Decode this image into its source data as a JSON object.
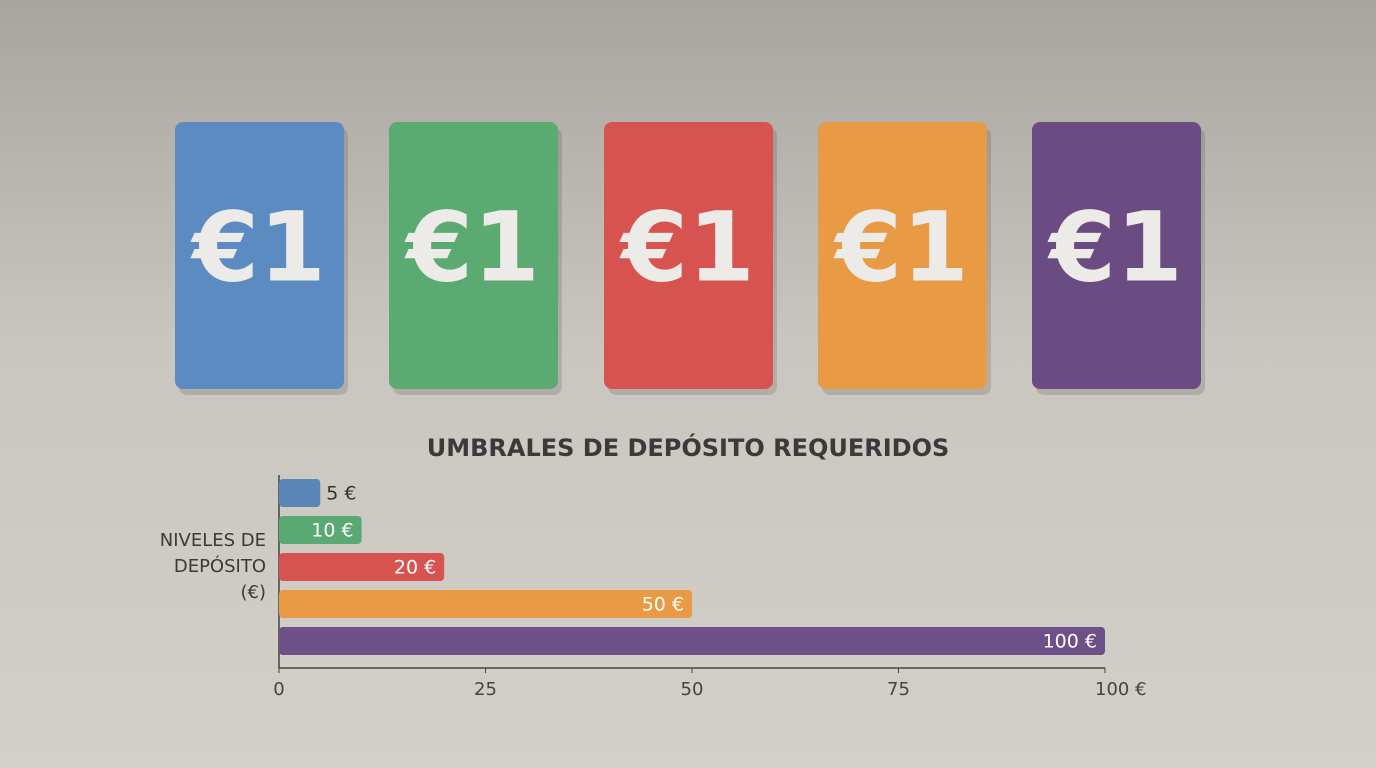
{
  "cards": [
    {
      "label": "€1",
      "color": "#5b8bc0"
    },
    {
      "label": "€1",
      "color": "#5aaa72"
    },
    {
      "label": "€1",
      "color": "#d6534f"
    },
    {
      "label": "€1",
      "color": "#e89a45"
    },
    {
      "label": "€1",
      "color": "#6a4c82"
    }
  ],
  "chart_data": {
    "type": "hbar",
    "title": "UMBRALES DE DEPÓSITO REQUERIDOS",
    "y_label": "NIVELES DE DEPÓSITO (€)",
    "values": [
      5,
      10,
      20,
      50,
      100
    ],
    "value_labels": [
      "5 €",
      "10 €",
      "20 €",
      "50 €",
      "100 €"
    ],
    "colors": [
      "#5b86b8",
      "#5aa872",
      "#d6534f",
      "#e89a45",
      "#6d5088"
    ],
    "xlim": [
      0,
      100
    ],
    "xticks": [
      0,
      25,
      50,
      75,
      {
        "value": 100,
        "label": "100 €"
      }
    ]
  }
}
